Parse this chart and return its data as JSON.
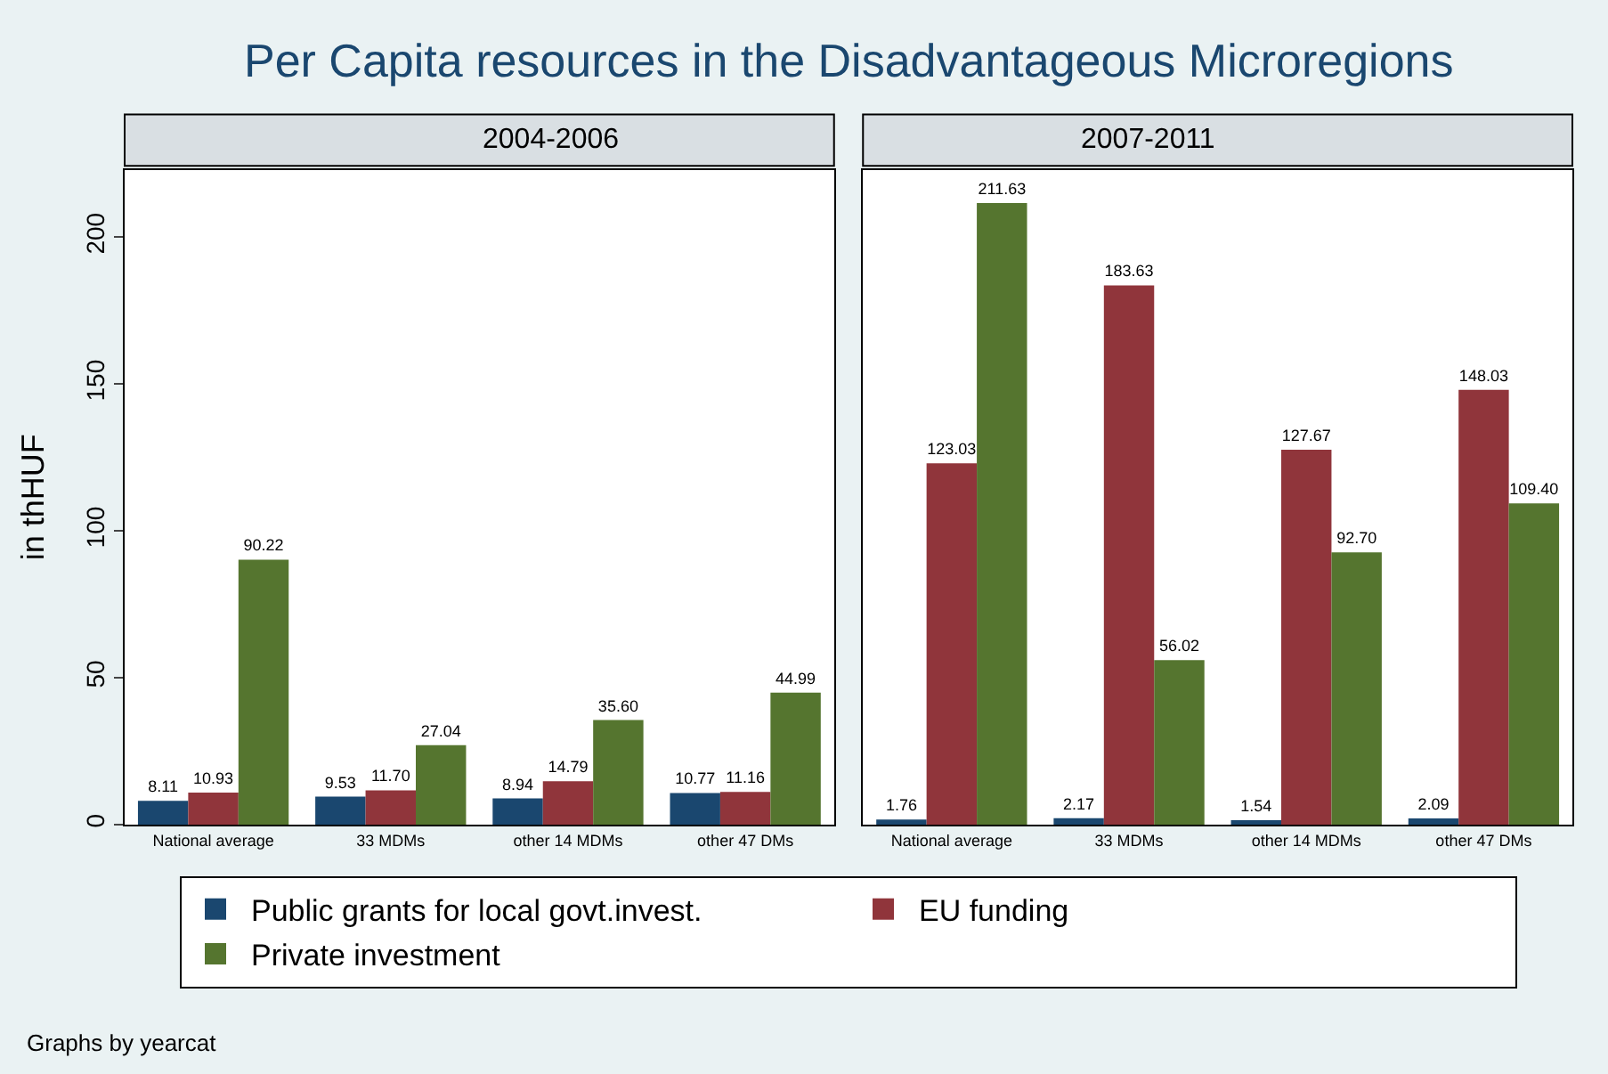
{
  "chart_data": [
    {
      "type": "bar",
      "title": "Per Capita resources in the Disadvantageous Microregions",
      "subtitle": "2004-2006",
      "ylabel": "in thHUF",
      "categories": [
        "National average",
        "33 MDMs",
        "other 14 MDMs",
        "other 47 DMs"
      ],
      "series": [
        {
          "name": "Public grants for local govt.invest.",
          "color": "#1a476f",
          "values": [
            8.11,
            9.53,
            8.94,
            10.77
          ],
          "value_labels": [
            "8.11",
            "9.53",
            "8.94",
            "10.77"
          ]
        },
        {
          "name": "EU funding",
          "color": "#90353b",
          "values": [
            10.93,
            11.7,
            14.79,
            11.16
          ],
          "value_labels": [
            "10.93",
            "11.70",
            "14.79",
            "11.16"
          ]
        },
        {
          "name": "Private investment",
          "color": "#55752f",
          "values": [
            90.22,
            27.04,
            35.6,
            44.99
          ],
          "value_labels": [
            "90.22",
            "27.04",
            "35.60",
            "44.99"
          ]
        }
      ],
      "ylim": [
        0,
        223
      ],
      "yticks": [
        0,
        50,
        100,
        150,
        200
      ],
      "grid": false,
      "legend": "bottom",
      "annotations": [
        "Graphs by yearcat"
      ]
    },
    {
      "type": "bar",
      "subtitle": "2007-2011",
      "categories": [
        "National average",
        "33 MDMs",
        "other 14 MDMs",
        "other 47 DMs"
      ],
      "series": [
        {
          "color": "#1a476f",
          "values": [
            1.76,
            2.17,
            1.54,
            2.09
          ],
          "value_labels": [
            "1.76",
            "2.17",
            "1.54",
            "2.09"
          ]
        },
        {
          "color": "#90353b",
          "values": [
            123.03,
            183.63,
            127.67,
            148.03
          ],
          "value_labels": [
            "123.03",
            "183.63",
            "127.67",
            "148.03"
          ]
        },
        {
          "color": "#55752f",
          "values": [
            211.63,
            56.02,
            92.7,
            109.4
          ],
          "value_labels": [
            "211.63",
            "56.02",
            "92.70",
            "109.40"
          ]
        }
      ],
      "ylim": [
        0,
        223
      ],
      "yticks": [
        0,
        50,
        100,
        150,
        200
      ],
      "grid": false,
      "tick_labels": "x"
    }
  ]
}
